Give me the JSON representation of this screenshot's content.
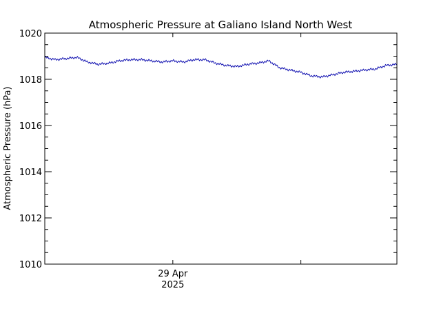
{
  "chart_data": {
    "type": "line",
    "title": "Atmospheric Pressure at Galiano Island North West",
    "xlabel": "",
    "ylabel": "Atmospheric Pressure (hPa)",
    "x_tick_labels": [
      {
        "line1": "29 Apr",
        "line2": "2025"
      }
    ],
    "x_unit": "hours",
    "x_range": [
      -24,
      42
    ],
    "x_major_ticks": [
      0,
      24
    ],
    "x_labeled_ticks": [
      0
    ],
    "ylim": [
      1010,
      1020
    ],
    "y_ticks": [
      1010,
      1012,
      1014,
      1016,
      1018,
      1020
    ],
    "y_minor_step": 0.5,
    "grid": false,
    "colors": {
      "series": "#1010b0",
      "axis": "#000000"
    },
    "series": [
      {
        "x": [
          -24,
          -22,
          -20,
          -18,
          -16,
          -14,
          -12,
          -10,
          -8,
          -6,
          -4,
          -2,
          0,
          2,
          4,
          6,
          8,
          10,
          12,
          14,
          16,
          18,
          20,
          22,
          24,
          26,
          28,
          30,
          32,
          34,
          36,
          38,
          40,
          42
        ],
        "y": [
          1018.95,
          1018.85,
          1018.9,
          1018.95,
          1018.75,
          1018.65,
          1018.7,
          1018.8,
          1018.85,
          1018.85,
          1018.8,
          1018.75,
          1018.8,
          1018.75,
          1018.85,
          1018.85,
          1018.7,
          1018.6,
          1018.55,
          1018.65,
          1018.7,
          1018.8,
          1018.5,
          1018.4,
          1018.3,
          1018.15,
          1018.1,
          1018.2,
          1018.3,
          1018.35,
          1018.4,
          1018.45,
          1018.6,
          1018.65
        ]
      }
    ]
  }
}
